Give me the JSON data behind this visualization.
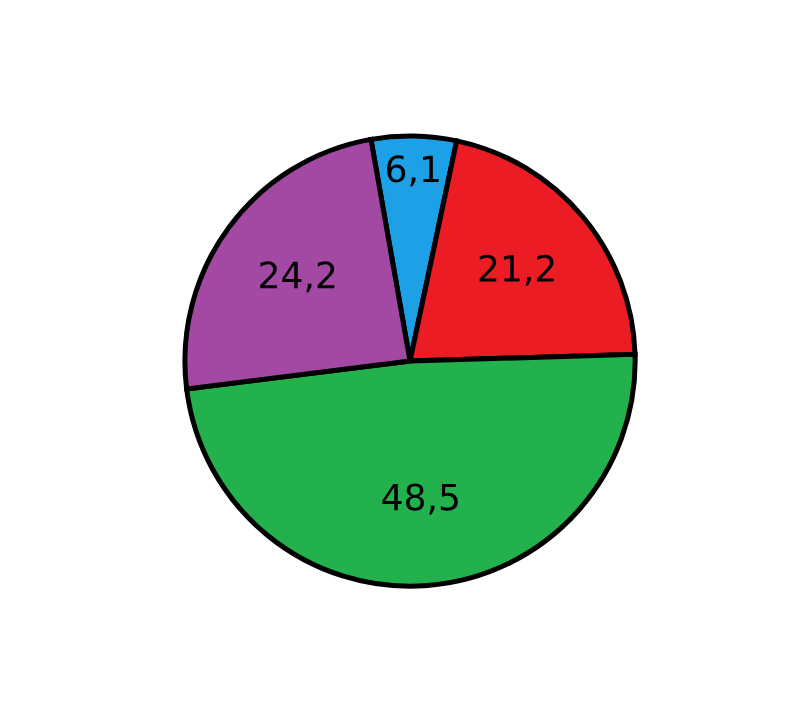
{
  "chart_data": {
    "type": "pie",
    "categories": [
      null,
      null,
      null,
      null
    ],
    "values": [
      6.1,
      21.2,
      48.5,
      24.2
    ],
    "value_labels": [
      "6,1",
      "21,2",
      "48,5",
      "24,2"
    ],
    "colors": [
      "#1ea0e6",
      "#ec1c24",
      "#22b14c",
      "#a349a4"
    ]
  }
}
